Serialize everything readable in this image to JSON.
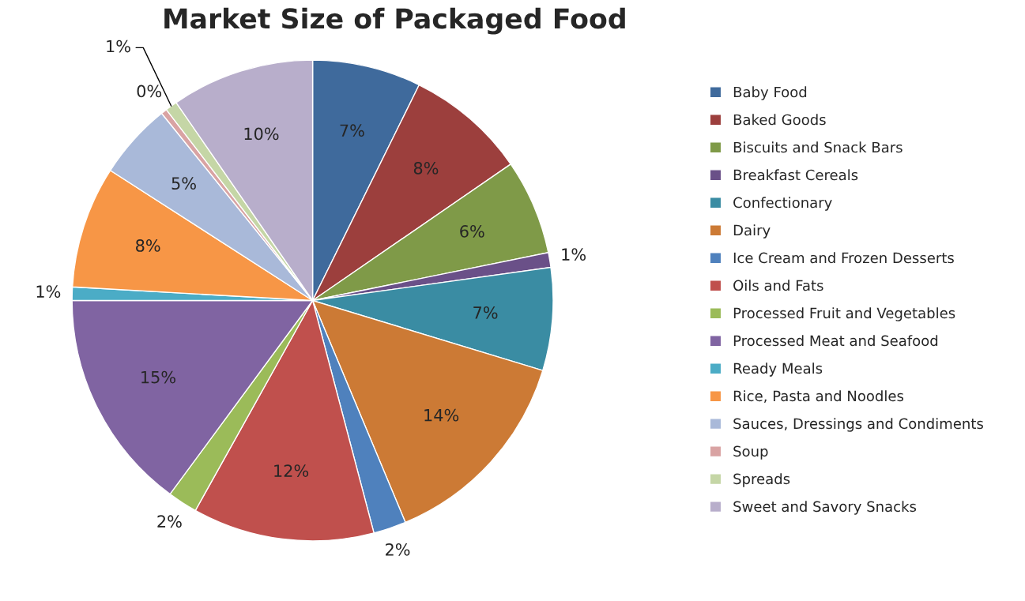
{
  "chart_data": {
    "type": "pie",
    "title": "Market Size of Packaged Food",
    "categories": [
      "Baby Food",
      "Baked Goods",
      "Biscuits and Snack Bars",
      "Breakfast Cereals",
      "Confectionary",
      "Dairy",
      "Ice Cream and Frozen Desserts",
      "Oils and Fats",
      "Processed Fruit and Vegetables",
      "Processed Meat and Seafood",
      "Ready Meals",
      "Rice, Pasta and Noodles",
      "Sauces, Dressings and Condiments",
      "Soup",
      "Spreads",
      "Sweet and Savory Snacks"
    ],
    "values": [
      7.3,
      8.1,
      6.4,
      1.0,
      6.9,
      14.0,
      2.2,
      12.2,
      2.0,
      14.9,
      0.9,
      8.2,
      5.1,
      0.4,
      0.8,
      9.6
    ],
    "value_labels": [
      "7%",
      "8%",
      "6%",
      "1%",
      "7%",
      "14%",
      "2%",
      "12%",
      "2%",
      "15%",
      "1%",
      "8%",
      "5%",
      "0%",
      "1%",
      "10%"
    ],
    "colors": [
      "#3f6a9c",
      "#9c3f3d",
      "#7f9a48",
      "#6a5088",
      "#3a8ca3",
      "#cc7a35",
      "#4f81bd",
      "#c0504d",
      "#9bbb59",
      "#8064a2",
      "#4bacc6",
      "#f79646",
      "#a9b9d9",
      "#d9a3a3",
      "#c5d6a6",
      "#b8aecb"
    ],
    "legend": "right"
  }
}
